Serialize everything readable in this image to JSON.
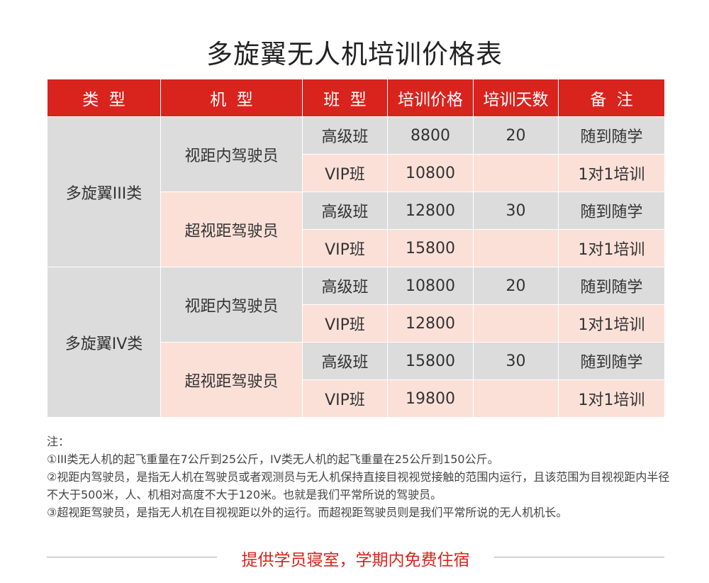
{
  "title": "多旋翼无人机培训价格表",
  "colors": {
    "header": "#d9231d",
    "gray_cell": "#dcdcdc",
    "pink_cell": "#fbe0d8",
    "footer_text": "#d9231d"
  },
  "headers": [
    "类  型",
    "机  型",
    "班  型",
    "培训价格",
    "培训天数",
    "备  注"
  ],
  "groups": [
    {
      "type": "多旋翼III类",
      "models": [
        {
          "model": "视距内驾驶员",
          "rows": [
            {
              "class": "高级班",
              "price": "8800",
              "days": "20",
              "note": "随到随学"
            },
            {
              "class": "VIP班",
              "price": "10800",
              "days": "",
              "note": "1对1培训"
            }
          ]
        },
        {
          "model": "超视距驾驶员",
          "rows": [
            {
              "class": "高级班",
              "price": "12800",
              "days": "30",
              "note": "随到随学"
            },
            {
              "class": "VIP班",
              "price": "15800",
              "days": "",
              "note": "1对1培训"
            }
          ]
        }
      ]
    },
    {
      "type": "多旋翼IV类",
      "models": [
        {
          "model": "视距内驾驶员",
          "rows": [
            {
              "class": "高级班",
              "price": "10800",
              "days": "20",
              "note": "随到随学"
            },
            {
              "class": "VIP班",
              "price": "12800",
              "days": "",
              "note": "1对1培训"
            }
          ]
        },
        {
          "model": "超视距驾驶员",
          "rows": [
            {
              "class": "高级班",
              "price": "15800",
              "days": "30",
              "note": "随到随学"
            },
            {
              "class": "VIP班",
              "price": "19800",
              "days": "",
              "note": "1对1培训"
            }
          ]
        }
      ]
    }
  ],
  "notes": [
    "注：",
    "①III类无人机的起飞重量在7公斤到25公斤，IV类无人机的起飞重量在25公斤到150公斤。",
    "②视距内驾驶员，是指无人机在驾驶员或者观测员与无人机保持直接目视视觉接触的范围内运行，且该范围为目视视距内半径不大于500米，人、机相对高度不大于120米。也就是我们平常所说的驾驶员。",
    "③超视距驾驶员，是指无人机在目视视距以外的运行。而超视距驾驶员则是我们平常所说的无人机机长。"
  ],
  "footer": "提供学员寝室，学期内免费住宿"
}
